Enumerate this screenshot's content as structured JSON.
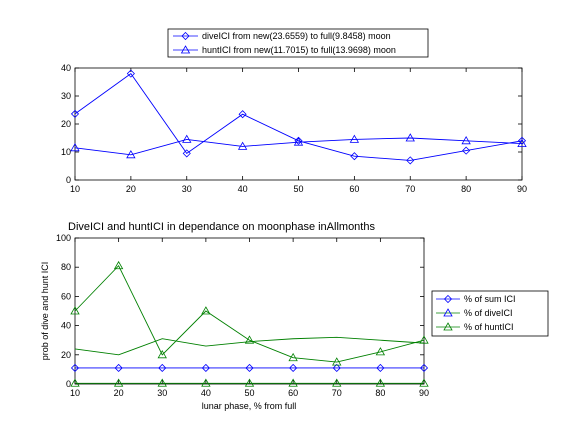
{
  "chart_data": [
    {
      "type": "line",
      "title": "",
      "xlabel": "",
      "ylabel": "",
      "x": [
        10,
        20,
        30,
        40,
        50,
        60,
        70,
        80,
        90
      ],
      "xlim": [
        10,
        90
      ],
      "ylim": [
        0,
        40
      ],
      "xticks": [
        "10",
        "20",
        "30",
        "40",
        "50",
        "60",
        "70",
        "80",
        "90"
      ],
      "yticks": [
        "0",
        "10",
        "20",
        "30",
        "40"
      ],
      "grid": false,
      "legend_position": "top-center",
      "series": [
        {
          "name": "diveICI from new(23.6559) to full(9.8458) moon",
          "marker": "diamond",
          "color": "#0000ff",
          "values": [
            23.6,
            38,
            9.5,
            23.5,
            14,
            8.5,
            7,
            10.5,
            14
          ]
        },
        {
          "name": "huntICI from new(11.7015) to full(13.9698) moon",
          "marker": "triangle",
          "color": "#0000ff",
          "values": [
            11.5,
            9,
            14.5,
            12,
            13.5,
            14.5,
            15,
            14,
            13
          ]
        }
      ]
    },
    {
      "type": "line",
      "title": "DiveICI and huntICI in dependance on moonphase inAllmonths",
      "xlabel": "lunar phase, % from full",
      "ylabel": "prob of dive and hunt ICI",
      "x": [
        10,
        20,
        30,
        40,
        50,
        60,
        70,
        80,
        90
      ],
      "xlim": [
        10,
        90
      ],
      "ylim": [
        0,
        100
      ],
      "xticks": [
        "10",
        "20",
        "30",
        "40",
        "50",
        "60",
        "70",
        "80",
        "90"
      ],
      "yticks": [
        "0",
        "20",
        "40",
        "60",
        "80",
        "100"
      ],
      "grid": false,
      "legend_position": "right",
      "series": [
        {
          "name": "% of sum ICI",
          "marker": "diamond",
          "color": "#0000ff",
          "values": [
            11,
            11,
            11,
            11,
            11,
            11,
            11,
            11,
            11
          ]
        },
        {
          "name": "% of diveICI",
          "marker": "triangle",
          "color": "#008000",
          "values": [
            0.5,
            0.5,
            0.5,
            0.5,
            0.5,
            0.5,
            0.5,
            0.5,
            0.5
          ]
        },
        {
          "name": "% of huntICI",
          "marker": "triangle",
          "color": "#008000",
          "values": [
            50,
            81,
            20,
            50,
            30,
            18,
            15,
            22,
            30
          ]
        },
        {
          "name": "",
          "marker": "none",
          "color": "#008000",
          "values": [
            24,
            20,
            31,
            26,
            29,
            31,
            32,
            30,
            28
          ]
        }
      ]
    }
  ]
}
